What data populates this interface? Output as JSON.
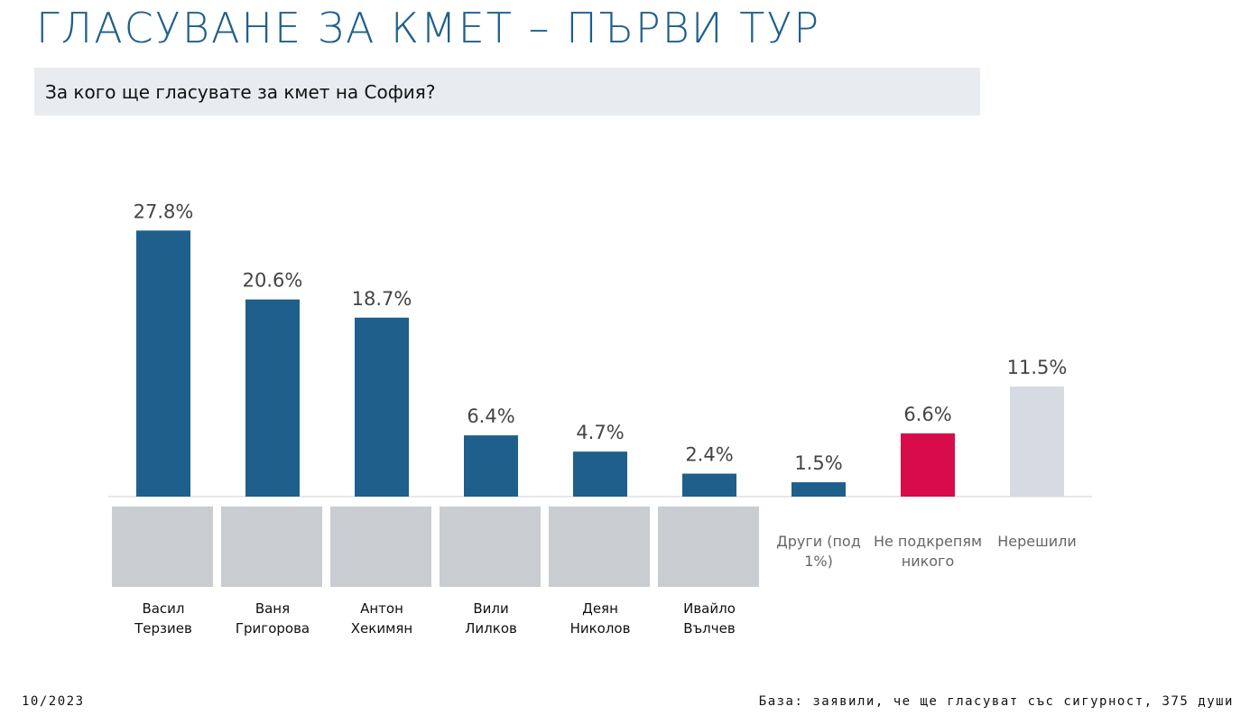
{
  "chart_data": {
    "type": "bar",
    "title": "ГЛАСУВАНЕ ЗА КМЕТ – ПЪРВИ ТУР",
    "subtitle": "За кого ще гласувате за кмет на София?",
    "categories": [
      "Васил Терзиев",
      "Ваня Григорова",
      "Антон Хекимян",
      "Вили Лилков",
      "Деян Николов",
      "Ивайло Вълчев",
      "Други (под 1%)",
      "Не подкрепям никого",
      "Нерешили"
    ],
    "values": [
      27.8,
      20.6,
      18.7,
      6.4,
      4.7,
      2.4,
      1.5,
      6.6,
      11.5
    ],
    "value_labels": [
      "27.8%",
      "20.6%",
      "18.7%",
      "6.4%",
      "4.7%",
      "2.4%",
      "1.5%",
      "6.6%",
      "11.5%"
    ],
    "colors": [
      "#1f5f8b",
      "#1f5f8b",
      "#1f5f8b",
      "#1f5f8b",
      "#1f5f8b",
      "#1f5f8b",
      "#1f5f8b",
      "#d80c4a",
      "#d5dae3"
    ],
    "date": "10/2023",
    "note": "База: заявили, че ще гласуват със сигурност, 375 души"
  }
}
